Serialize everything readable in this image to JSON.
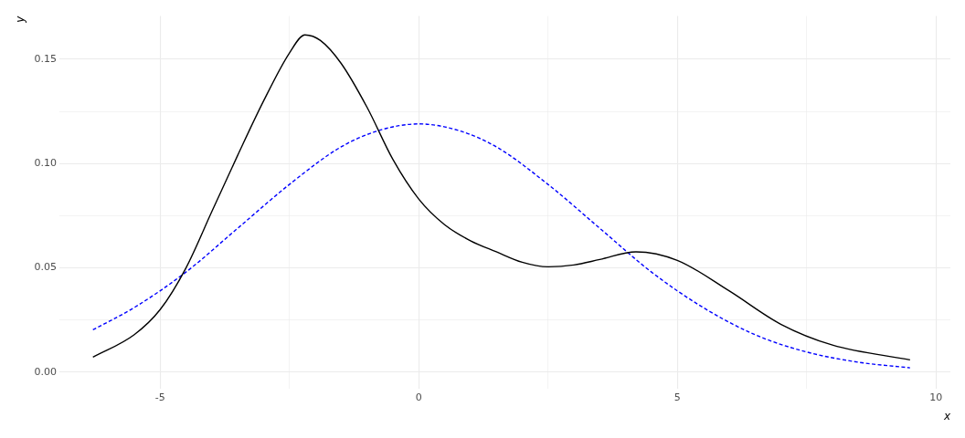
{
  "chart_data": {
    "type": "line",
    "xlabel": "x",
    "ylabel": "y",
    "xlim": [
      -6.95,
      10.28
    ],
    "ylim": [
      -0.0081,
      0.1707
    ],
    "xticks": [
      -5,
      {
        "value": -2.5,
        "label": null
      },
      0,
      {
        "value": 2.5,
        "label": null
      },
      5,
      {
        "value": 7.5,
        "label": null
      },
      10
    ],
    "yticks": [
      {
        "value": 0,
        "label": "0.00"
      },
      {
        "value": 0.025,
        "label": null
      },
      {
        "value": 0.05,
        "label": "0.05"
      },
      {
        "value": 0.075,
        "label": null
      },
      {
        "value": 0.1,
        "label": "0.10"
      },
      {
        "value": 0.125,
        "label": null
      },
      {
        "value": 0.15,
        "label": "0.15"
      }
    ],
    "grid": true,
    "legend": false,
    "marker": "none",
    "series": [
      {
        "color": "#000000",
        "line_style": "solid",
        "x": [
          -6.3,
          -5.5,
          -5,
          -4.5,
          -4,
          -3.5,
          -3,
          -2.5,
          -2.2,
          -1.9,
          -1.5,
          -1,
          -0.5,
          0,
          0.5,
          1,
          1.5,
          2,
          2.5,
          3,
          3.5,
          4.2,
          5,
          6,
          7,
          8,
          9.5
        ],
        "values": [
          0.0072,
          0.018,
          0.03,
          0.05,
          0.077,
          0.104,
          0.13,
          0.153,
          0.1617,
          0.159,
          0.148,
          0.127,
          0.102,
          0.083,
          0.0707,
          0.063,
          0.0577,
          0.0527,
          0.0505,
          0.0514,
          0.054,
          0.0577,
          0.0536,
          0.039,
          0.023,
          0.013,
          0.0059
        ]
      },
      {
        "color": "#0000ff",
        "line_style": "dashed",
        "x": [
          -6.3,
          -5.5,
          -4.5,
          -3.5,
          -2.5,
          -1.5,
          -0.75,
          0,
          0.75,
          1.5,
          2.5,
          3.5,
          4.5,
          5.5,
          6.5,
          7.5,
          8.5,
          9.5
        ],
        "values": [
          0.0203,
          0.031,
          0.048,
          0.069,
          0.09,
          0.108,
          0.116,
          0.119,
          0.116,
          0.108,
          0.09,
          0.069,
          0.048,
          0.031,
          0.018,
          0.0097,
          0.0048,
          0.0021
        ]
      }
    ]
  }
}
